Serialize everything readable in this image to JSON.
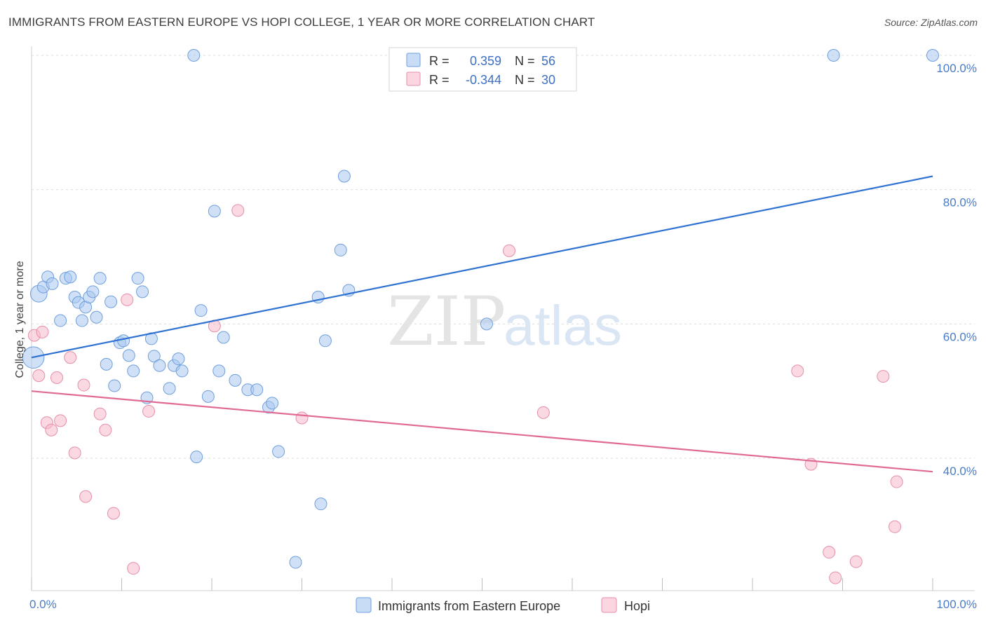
{
  "header": {
    "title": "IMMIGRANTS FROM EASTERN EUROPE VS HOPI COLLEGE, 1 YEAR OR MORE CORRELATION CHART",
    "source": "Source: ZipAtlas.com"
  },
  "watermark": {
    "zip": "ZIP",
    "atlas": "atlas"
  },
  "legend": {
    "rows": [
      {
        "r_label": "R =",
        "r_value": "0.359",
        "n_label": "N =",
        "n_value": "56",
        "color": "#a9c8f0"
      },
      {
        "r_label": "R =",
        "r_value": "-0.344",
        "n_label": "N =",
        "n_value": "30",
        "color": "#f6b9cb"
      }
    ]
  },
  "bottom_legend": [
    {
      "label": "Immigrants from Eastern Europe",
      "color": "#a9c8f0"
    },
    {
      "label": "Hopi",
      "color": "#f6b9cb"
    }
  ],
  "chart_data": {
    "type": "scatter",
    "title": "IMMIGRANTS FROM EASTERN EUROPE VS HOPI COLLEGE, 1 YEAR OR MORE CORRELATION CHART",
    "xlabel": "",
    "ylabel": "College, 1 year or more",
    "xlim": [
      0,
      100
    ],
    "ylim": [
      20,
      102
    ],
    "x_tick_labels": [
      "0.0%",
      "100.0%"
    ],
    "y_tick_labels": [
      "40.0%",
      "60.0%",
      "80.0%",
      "100.0%"
    ],
    "y_ticks": [
      40,
      60,
      80,
      100
    ],
    "grid": true,
    "legend_position": "top-center",
    "series": [
      {
        "name": "Immigrants from Eastern Europe",
        "color": "#a9c8f0",
        "stroke": "#6f9fdc",
        "trend": {
          "x": [
            0,
            100
          ],
          "y": [
            55.0,
            82.0
          ],
          "color": "#2f72d1"
        },
        "points": [
          {
            "x": 0.2,
            "y": 55,
            "s": 1.8
          },
          {
            "x": 0.8,
            "y": 64.5,
            "s": 1.4
          },
          {
            "x": 1.3,
            "y": 65.5,
            "s": 1
          },
          {
            "x": 1.8,
            "y": 67
          },
          {
            "x": 2.3,
            "y": 66
          },
          {
            "x": 3.2,
            "y": 60.5
          },
          {
            "x": 3.8,
            "y": 66.8
          },
          {
            "x": 4.3,
            "y": 67
          },
          {
            "x": 4.8,
            "y": 64
          },
          {
            "x": 5.2,
            "y": 63.2
          },
          {
            "x": 5.6,
            "y": 60.5
          },
          {
            "x": 6.0,
            "y": 62.5
          },
          {
            "x": 6.4,
            "y": 64
          },
          {
            "x": 6.8,
            "y": 64.8
          },
          {
            "x": 7.2,
            "y": 61
          },
          {
            "x": 7.6,
            "y": 66.8
          },
          {
            "x": 8.3,
            "y": 54
          },
          {
            "x": 8.8,
            "y": 63.3
          },
          {
            "x": 9.2,
            "y": 50.8
          },
          {
            "x": 9.8,
            "y": 57.2
          },
          {
            "x": 10.2,
            "y": 57.5
          },
          {
            "x": 10.8,
            "y": 55.3
          },
          {
            "x": 11.3,
            "y": 53
          },
          {
            "x": 11.8,
            "y": 66.8
          },
          {
            "x": 12.3,
            "y": 64.8
          },
          {
            "x": 12.8,
            "y": 49
          },
          {
            "x": 13.3,
            "y": 57.8
          },
          {
            "x": 13.6,
            "y": 55.2
          },
          {
            "x": 14.2,
            "y": 53.8
          },
          {
            "x": 15.3,
            "y": 50.4
          },
          {
            "x": 15.8,
            "y": 53.8
          },
          {
            "x": 16.3,
            "y": 54.8
          },
          {
            "x": 16.7,
            "y": 53
          },
          {
            "x": 18.0,
            "y": 100
          },
          {
            "x": 18.3,
            "y": 40.2
          },
          {
            "x": 18.8,
            "y": 62
          },
          {
            "x": 19.6,
            "y": 49.2
          },
          {
            "x": 20.3,
            "y": 76.8
          },
          {
            "x": 20.8,
            "y": 53
          },
          {
            "x": 21.3,
            "y": 58
          },
          {
            "x": 22.6,
            "y": 51.6
          },
          {
            "x": 24.0,
            "y": 50.2
          },
          {
            "x": 25.0,
            "y": 50.2
          },
          {
            "x": 26.3,
            "y": 47.6
          },
          {
            "x": 26.7,
            "y": 48.2
          },
          {
            "x": 27.4,
            "y": 41
          },
          {
            "x": 29.3,
            "y": 24.5
          },
          {
            "x": 31.8,
            "y": 64
          },
          {
            "x": 32.1,
            "y": 33.2
          },
          {
            "x": 32.6,
            "y": 57.5
          },
          {
            "x": 34.3,
            "y": 71
          },
          {
            "x": 34.7,
            "y": 82
          },
          {
            "x": 35.2,
            "y": 65
          },
          {
            "x": 50.5,
            "y": 60
          },
          {
            "x": 89.0,
            "y": 100
          },
          {
            "x": 100.0,
            "y": 100
          }
        ]
      },
      {
        "name": "Hopi",
        "color": "#f6b9cb",
        "stroke": "#e58fa8",
        "trend": {
          "x": [
            0,
            100
          ],
          "y": [
            50.0,
            38.0
          ],
          "color": "#e06a94"
        },
        "points": [
          {
            "x": 0.3,
            "y": 58.3
          },
          {
            "x": 0.8,
            "y": 52.3
          },
          {
            "x": 1.2,
            "y": 58.8
          },
          {
            "x": 1.7,
            "y": 45.3
          },
          {
            "x": 2.2,
            "y": 44.2
          },
          {
            "x": 2.8,
            "y": 52.0
          },
          {
            "x": 3.2,
            "y": 45.6
          },
          {
            "x": 4.3,
            "y": 55.0
          },
          {
            "x": 4.8,
            "y": 40.8
          },
          {
            "x": 5.8,
            "y": 50.9
          },
          {
            "x": 6.0,
            "y": 34.3
          },
          {
            "x": 7.6,
            "y": 46.6
          },
          {
            "x": 8.2,
            "y": 44.2
          },
          {
            "x": 9.1,
            "y": 31.8
          },
          {
            "x": 10.6,
            "y": 63.6
          },
          {
            "x": 11.3,
            "y": 23.6
          },
          {
            "x": 13.0,
            "y": 47.0
          },
          {
            "x": 20.3,
            "y": 59.7
          },
          {
            "x": 22.9,
            "y": 76.9
          },
          {
            "x": 30.0,
            "y": 46.0
          },
          {
            "x": 53.0,
            "y": 70.9
          },
          {
            "x": 56.8,
            "y": 46.8
          },
          {
            "x": 85.0,
            "y": 53.0
          },
          {
            "x": 86.5,
            "y": 39.1
          },
          {
            "x": 88.5,
            "y": 26.0
          },
          {
            "x": 89.2,
            "y": 22.2
          },
          {
            "x": 91.5,
            "y": 24.6
          },
          {
            "x": 94.5,
            "y": 52.2
          },
          {
            "x": 95.8,
            "y": 29.8
          },
          {
            "x": 96.0,
            "y": 36.5
          }
        ]
      }
    ]
  }
}
